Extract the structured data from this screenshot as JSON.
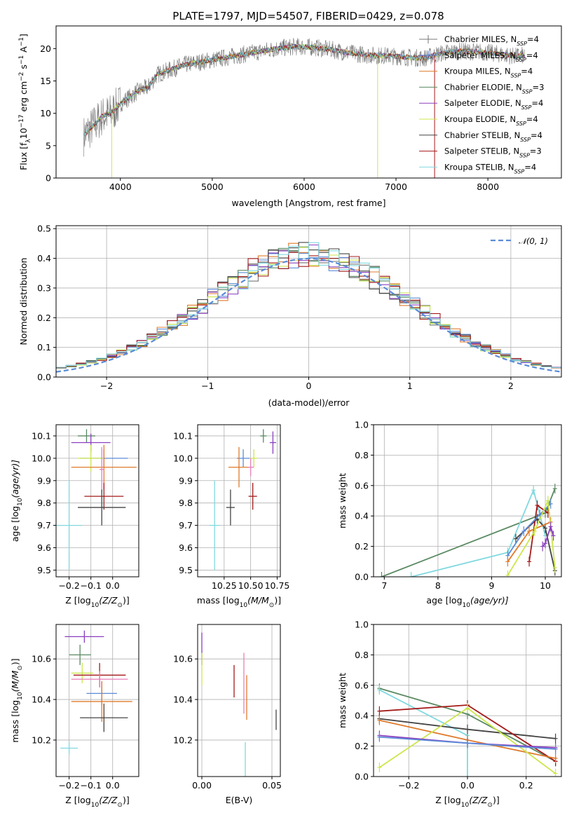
{
  "page": {
    "title": "PLATE=1797, MJD=54507, FIBERID=0429, z=0.078"
  },
  "colors": {
    "c1": "#777777",
    "c2": "#5b8bd8",
    "c3": "#e07b2c",
    "c4": "#5a8a62",
    "c5": "#8b3fbf",
    "c6": "#cce64c",
    "c7": "#444444",
    "c8": "#a41a1a",
    "c9": "#80d8e0",
    "pink": "#e77fb7"
  },
  "chart_data": [
    {
      "id": "spectrum",
      "type": "line",
      "title": "PLATE=1797, MJD=54507, FIBERID=0429, z=0.078",
      "xlabel": "wavelength [Angstrom, rest frame]",
      "ylabel": "Flux [f",
      "ylabel_parts": {
        "a": "Flux [f",
        "b": "λ",
        "c": "10",
        "d": "−17",
        "e": " erg cm",
        "f": "−2",
        "g": " s",
        "h": "−1",
        "i": " A",
        "j": "−1",
        "k": "]"
      },
      "xlim": [
        3300,
        8800
      ],
      "ylim": [
        0,
        23.5
      ],
      "xticks": [
        4000,
        5000,
        6000,
        7000,
        8000
      ],
      "xtick_labels": [
        "4000",
        "5000",
        "6000",
        "7000",
        "8000"
      ],
      "yticks": [
        0,
        5,
        10,
        15,
        20
      ],
      "ytick_labels": [
        "0",
        "5",
        "10",
        "15",
        "20"
      ],
      "continuum": [
        [
          3600,
          6.5
        ],
        [
          3700,
          8
        ],
        [
          3800,
          9.5
        ],
        [
          3900,
          10
        ],
        [
          4000,
          11.5
        ],
        [
          4100,
          12.5
        ],
        [
          4200,
          13.5
        ],
        [
          4300,
          14
        ],
        [
          4400,
          16
        ],
        [
          4500,
          16.5
        ],
        [
          4700,
          17.5
        ],
        [
          4900,
          18
        ],
        [
          5100,
          18.5
        ],
        [
          5300,
          19
        ],
        [
          5500,
          19.5
        ],
        [
          5700,
          20
        ],
        [
          5900,
          20.3
        ],
        [
          6100,
          20.2
        ],
        [
          6300,
          19.8
        ],
        [
          6500,
          19.3
        ],
        [
          6700,
          19
        ],
        [
          6900,
          18.9
        ],
        [
          7100,
          18.7
        ],
        [
          7300,
          18.5
        ],
        [
          7500,
          19.3
        ],
        [
          7700,
          19.6
        ],
        [
          7900,
          19.5
        ],
        [
          8100,
          19.2
        ],
        [
          8300,
          18.8
        ],
        [
          8400,
          19
        ]
      ],
      "legend": [
        {
          "name": "Chabrier MILES, N",
          "sub": "SSP",
          "tail": "=4",
          "color": "#777777",
          "marker": "plus"
        },
        {
          "name": "Salpeter MILES, N",
          "sub": "SSP",
          "tail": "=4",
          "color": "#5b8bd8",
          "marker": "plus"
        },
        {
          "name": "Kroupa MILES, N",
          "sub": "SSP",
          "tail": "=4",
          "color": "#e07b2c",
          "marker": "none"
        },
        {
          "name": "Chabrier ELODIE, N",
          "sub": "SSP",
          "tail": "=3",
          "color": "#5a8a62",
          "marker": "none"
        },
        {
          "name": "Salpeter ELODIE, N",
          "sub": "SSP",
          "tail": "=4",
          "color": "#8b3fbf",
          "marker": "none"
        },
        {
          "name": "Kroupa ELODIE, N",
          "sub": "SSP",
          "tail": "=4",
          "color": "#cce64c",
          "marker": "none"
        },
        {
          "name": "Chabrier STELIB, N",
          "sub": "SSP",
          "tail": "=4",
          "color": "#444444",
          "marker": "none"
        },
        {
          "name": "Salpeter STELIB, N",
          "sub": "SSP",
          "tail": "=3",
          "color": "#a41a1a",
          "marker": "none"
        },
        {
          "name": "Kroupa STELIB, N",
          "sub": "SSP",
          "tail": "=4",
          "color": "#80d8e0",
          "marker": "none"
        }
      ]
    },
    {
      "id": "residuals",
      "type": "histogram",
      "xlabel": "(data-model)/error",
      "ylabel": "Normed distribution",
      "xlim": [
        -2.5,
        2.5
      ],
      "ylim": [
        0,
        0.51
      ],
      "xticks": [
        -2,
        -1,
        0,
        1,
        2
      ],
      "xtick_labels": [
        "−2",
        "−1",
        "0",
        "1",
        "2"
      ],
      "yticks": [
        0,
        0.1,
        0.2,
        0.3,
        0.4,
        0.5
      ],
      "ytick_labels": [
        "0.0",
        "0.1",
        "0.2",
        "0.3",
        "0.4",
        "0.5"
      ],
      "bin_width": 0.1,
      "legend": [
        {
          "name": "𝒩(0, 1)",
          "color": "#5b8bd8",
          "style": "dashed"
        }
      ]
    },
    {
      "id": "age_vs_Z",
      "type": "errorbar",
      "xlabel": "Z [log",
      "xlabel_parts": {
        "a": "Z [log",
        "b": "10",
        "c": "(Z/Z",
        "d": "⊙",
        "e": ")]"
      },
      "ylabel": "age  [log",
      "ylabel_parts": {
        "a": "age  [log",
        "b": "10",
        "c": "(age/yr)]"
      },
      "xlim": [
        -0.26,
        0.12
      ],
      "ylim": [
        9.47,
        10.15
      ],
      "xticks": [
        -0.2,
        -0.1,
        0.0
      ],
      "xtick_labels": [
        "−0.2",
        "−0.1",
        "0.0"
      ],
      "yticks": [
        9.5,
        9.6,
        9.7,
        9.8,
        9.9,
        10.0,
        10.1
      ],
      "ytick_labels": [
        "9.5",
        "9.6",
        "9.7",
        "9.8",
        "9.9",
        "10.0",
        "10.1"
      ],
      "points": [
        {
          "x": -0.12,
          "y": 10.1,
          "xerr": 0.04,
          "yerr": 0.03,
          "color": "#5a8a62"
        },
        {
          "x": -0.1,
          "y": 10.07,
          "xerr": 0.09,
          "yerr": 0.04,
          "color": "#8b3fbf"
        },
        {
          "x": -0.04,
          "y": 10.0,
          "xerr": 0.11,
          "yerr": 0.04,
          "color": "#5b8bd8"
        },
        {
          "x": -0.1,
          "y": 10.0,
          "xerr": 0.06,
          "yerr": 0.06,
          "color": "#cce64c"
        },
        {
          "x": -0.04,
          "y": 9.96,
          "xerr": 0.15,
          "yerr": 0.1,
          "color": "#e07b2c"
        },
        {
          "x": -0.05,
          "y": 9.95,
          "xerr": 0.01,
          "yerr": 0.1,
          "color": "#e77fb7"
        },
        {
          "x": -0.04,
          "y": 9.83,
          "xerr": 0.09,
          "yerr": 0.06,
          "color": "#a41a1a"
        },
        {
          "x": -0.05,
          "y": 9.78,
          "xerr": 0.11,
          "yerr": 0.08,
          "color": "#444444"
        },
        {
          "x": -0.2,
          "y": 9.7,
          "xerr": 0.06,
          "yerr": 0.2,
          "color": "#80d8e0"
        }
      ]
    },
    {
      "id": "age_vs_mass",
      "type": "errorbar",
      "xlabel": "mass [log",
      "xlabel_parts": {
        "a": "mass [log",
        "b": "10",
        "c": "(M/M",
        "d": "⊙",
        "e": ")]"
      },
      "xlim": [
        10.0,
        10.78
      ],
      "ylim": [
        9.47,
        10.15
      ],
      "xticks": [
        10.25,
        10.5,
        10.75
      ],
      "xtick_labels": [
        "10.25",
        "10.50",
        "10.75"
      ],
      "yticks": [
        9.5,
        9.6,
        9.7,
        9.8,
        9.9,
        10.0,
        10.1
      ],
      "ytick_labels": [
        "9.5",
        "9.6",
        "9.7",
        "9.8",
        "9.9",
        "10.0",
        "10.1"
      ],
      "points": [
        {
          "x": 10.62,
          "y": 10.1,
          "xerr": 0.03,
          "yerr": 0.03,
          "color": "#5a8a62"
        },
        {
          "x": 10.71,
          "y": 10.07,
          "xerr": 0.03,
          "yerr": 0.05,
          "color": "#8b3fbf"
        },
        {
          "x": 10.43,
          "y": 10.0,
          "xerr": 0.06,
          "yerr": 0.04,
          "color": "#5b8bd8"
        },
        {
          "x": 10.53,
          "y": 10.0,
          "xerr": 0.03,
          "yerr": 0.04,
          "color": "#cce64c"
        },
        {
          "x": 10.39,
          "y": 9.96,
          "xerr": 0.1,
          "yerr": 0.09,
          "color": "#e07b2c"
        },
        {
          "x": 10.5,
          "y": 9.96,
          "xerr": 0.03,
          "yerr": 0.04,
          "color": "#e77fb7"
        },
        {
          "x": 10.52,
          "y": 9.83,
          "xerr": 0.04,
          "yerr": 0.06,
          "color": "#a41a1a"
        },
        {
          "x": 10.31,
          "y": 9.78,
          "xerr": 0.04,
          "yerr": 0.08,
          "color": "#444444"
        },
        {
          "x": 10.16,
          "y": 9.7,
          "xerr": 0.05,
          "yerr": 0.2,
          "color": "#80d8e0"
        }
      ]
    },
    {
      "id": "mass_weight_vs_age",
      "type": "line",
      "xlabel": "age  [log",
      "xlabel_parts": {
        "a": "age  [log",
        "b": "10",
        "c": "(age/yr)]"
      },
      "ylabel": "mass weight",
      "xlim": [
        6.8,
        10.3
      ],
      "ylim": [
        0,
        1.0
      ],
      "xticks": [
        7,
        8,
        9,
        10
      ],
      "xtick_labels": [
        "7",
        "8",
        "9",
        "10"
      ],
      "yticks": [
        0,
        0.2,
        0.4,
        0.6,
        0.8,
        1.0
      ],
      "ytick_labels": [
        "0.0",
        "0.2",
        "0.4",
        "0.6",
        "0.8",
        "1.0"
      ],
      "series": [
        {
          "color": "#5a8a62",
          "x": [
            6.95,
            10.0,
            10.18
          ],
          "y": [
            0.0,
            0.42,
            0.58
          ]
        },
        {
          "color": "#80d8e0",
          "x": [
            7.5,
            9.3,
            9.78,
            10.0
          ],
          "y": [
            0.0,
            0.16,
            0.57,
            0.27
          ]
        },
        {
          "color": "#444444",
          "x": [
            9.45,
            9.85,
            10.0,
            10.18
          ],
          "y": [
            0.25,
            0.38,
            0.32,
            0.04
          ]
        },
        {
          "color": "#a41a1a",
          "x": [
            9.7,
            9.85,
            10.05
          ],
          "y": [
            0.1,
            0.47,
            0.42
          ]
        },
        {
          "color": "#5b8bd8",
          "x": [
            9.3,
            9.6,
            9.9,
            10.1
          ],
          "y": [
            0.14,
            0.3,
            0.41,
            0.48
          ]
        },
        {
          "color": "#e07b2c",
          "x": [
            9.3,
            9.7,
            10.1
          ],
          "y": [
            0.1,
            0.3,
            0.36
          ]
        },
        {
          "color": "#cce64c",
          "x": [
            9.3,
            9.8,
            10.05,
            10.18
          ],
          "y": [
            0.01,
            0.3,
            0.5,
            0.06
          ]
        },
        {
          "color": "#8b3fbf",
          "x": [
            9.95,
            10.0,
            10.1,
            10.15
          ],
          "y": [
            0.2,
            0.22,
            0.33,
            0.27
          ]
        }
      ]
    },
    {
      "id": "mass_vs_Z",
      "type": "errorbar",
      "xlabel": "Z [log",
      "xlabel_parts": {
        "a": "Z [log",
        "b": "10",
        "c": "(Z/Z",
        "d": "⊙",
        "e": ")]"
      },
      "ylabel": "mass [log",
      "ylabel_parts": {
        "a": "mass [log",
        "b": "10",
        "c": "(M/M",
        "d": "⊙",
        "e": ")]"
      },
      "xlim": [
        -0.26,
        0.12
      ],
      "ylim": [
        10.02,
        10.77
      ],
      "xticks": [
        -0.2,
        -0.1,
        0.0
      ],
      "xtick_labels": [
        "−0.2",
        "−0.1",
        "0.0"
      ],
      "yticks": [
        10.2,
        10.4,
        10.6
      ],
      "ytick_labels": [
        "10.2",
        "10.4",
        "10.6"
      ],
      "points": [
        {
          "x": -0.13,
          "y": 10.71,
          "xerr": 0.09,
          "yerr": 0.03,
          "color": "#8b3fbf"
        },
        {
          "x": -0.15,
          "y": 10.62,
          "xerr": 0.05,
          "yerr": 0.05,
          "color": "#5a8a62"
        },
        {
          "x": -0.14,
          "y": 10.53,
          "xerr": 0.05,
          "yerr": 0.05,
          "color": "#cce64c"
        },
        {
          "x": -0.06,
          "y": 10.52,
          "xerr": 0.12,
          "yerr": 0.06,
          "color": "#a41a1a"
        },
        {
          "x": -0.06,
          "y": 10.5,
          "xerr": 0.13,
          "yerr": 0.04,
          "color": "#e77fb7"
        },
        {
          "x": -0.05,
          "y": 10.43,
          "xerr": 0.07,
          "yerr": 0.06,
          "color": "#5b8bd8"
        },
        {
          "x": -0.05,
          "y": 10.39,
          "xerr": 0.14,
          "yerr": 0.1,
          "color": "#e07b2c"
        },
        {
          "x": -0.04,
          "y": 10.31,
          "xerr": 0.11,
          "yerr": 0.07,
          "color": "#444444"
        },
        {
          "x": -0.2,
          "y": 10.16,
          "xerr": 0.04,
          "yerr": 0.03,
          "color": "#80d8e0"
        }
      ]
    },
    {
      "id": "mass_vs_EBV",
      "type": "errorbar",
      "xlabel": "E(B-V)",
      "xlim": [
        -0.003,
        0.056
      ],
      "ylim": [
        10.02,
        10.77
      ],
      "xticks": [
        0.0,
        0.05
      ],
      "xtick_labels": [
        "0.00",
        "0.05"
      ],
      "yticks": [
        10.2,
        10.4,
        10.6
      ],
      "ytick_labels": [
        "10.2",
        "10.4",
        "10.6"
      ],
      "points": [
        {
          "x": 0.0,
          "y": 10.65,
          "xerr": 0,
          "yerr": 0.08,
          "color": "#8b3fbf"
        },
        {
          "x": 0.0,
          "y": 10.55,
          "xerr": 0,
          "yerr": 0.08,
          "color": "#cce64c"
        },
        {
          "x": 0.023,
          "y": 10.49,
          "xerr": 0,
          "yerr": 0.08,
          "color": "#a41a1a"
        },
        {
          "x": 0.03,
          "y": 10.48,
          "xerr": 0,
          "yerr": 0.15,
          "color": "#e77fb7"
        },
        {
          "x": 0.032,
          "y": 10.41,
          "xerr": 0,
          "yerr": 0.11,
          "color": "#e07b2c"
        },
        {
          "x": 0.053,
          "y": 10.3,
          "xerr": 0,
          "yerr": 0.05,
          "color": "#444444"
        },
        {
          "x": 0.031,
          "y": 10.09,
          "xerr": 0,
          "yerr": 0.1,
          "color": "#80d8e0"
        }
      ]
    },
    {
      "id": "mass_weight_vs_Z",
      "type": "line",
      "xlabel": "Z [log",
      "xlabel_parts": {
        "a": "Z [log",
        "b": "10",
        "c": "(Z/Z",
        "d": "⊙",
        "e": ")]"
      },
      "ylabel": "mass weight",
      "xlim": [
        -0.32,
        0.32
      ],
      "ylim": [
        0,
        1.0
      ],
      "xticks": [
        -0.2,
        0.0,
        0.2
      ],
      "xtick_labels": [
        "−0.2",
        "0.0",
        "0.2"
      ],
      "yticks": [
        0,
        0.2,
        0.4,
        0.6,
        0.8,
        1.0
      ],
      "ytick_labels": [
        "0.0",
        "0.2",
        "0.4",
        "0.6",
        "0.8",
        "1.0"
      ],
      "series": [
        {
          "color": "#5a8a62",
          "x": [
            -0.3,
            0.0,
            0.3
          ],
          "y": [
            0.58,
            0.41,
            0.1
          ]
        },
        {
          "color": "#80d8e0",
          "x": [
            -0.3,
            0.0,
            0.0
          ],
          "y": [
            0.57,
            0.27,
            0.0
          ]
        },
        {
          "color": "#444444",
          "x": [
            -0.3,
            0.0,
            0.3
          ],
          "y": [
            0.38,
            0.31,
            0.25
          ]
        },
        {
          "color": "#a41a1a",
          "x": [
            -0.3,
            0.0,
            0.3
          ],
          "y": [
            0.43,
            0.47,
            0.1
          ]
        },
        {
          "color": "#e07b2c",
          "x": [
            -0.3,
            0.0,
            0.3
          ],
          "y": [
            0.37,
            0.24,
            0.12
          ]
        },
        {
          "color": "#cce64c",
          "x": [
            -0.3,
            0.0,
            0.3
          ],
          "y": [
            0.06,
            0.45,
            0.02
          ]
        },
        {
          "color": "#8b3fbf",
          "x": [
            -0.3,
            0.0,
            0.3
          ],
          "y": [
            0.27,
            0.22,
            0.19
          ]
        },
        {
          "color": "#5b8bd8",
          "x": [
            -0.3,
            0.0,
            0.3
          ],
          "y": [
            0.26,
            0.22,
            0.18
          ]
        }
      ]
    }
  ]
}
